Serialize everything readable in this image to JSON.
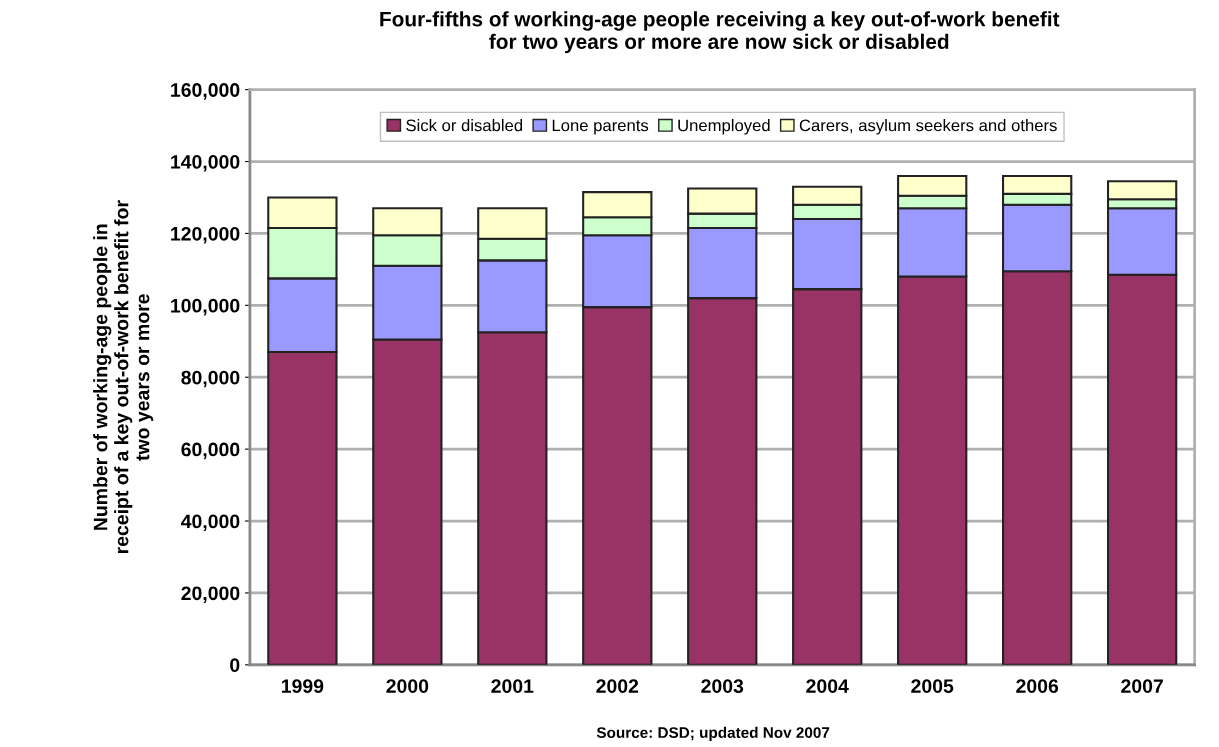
{
  "chart_data": {
    "type": "bar",
    "stacked": true,
    "title": "Four-fifths of working-age people receiving a key out-of-work benefit\nfor two years or more are now sick or disabled",
    "ylabel": "Number of working-age people in\nreceipt of a key out-of-work benefit for\ntwo years or more",
    "categories": [
      "1999",
      "2000",
      "2001",
      "2002",
      "2003",
      "2004",
      "2005",
      "2006",
      "2007"
    ],
    "series": [
      {
        "name": "Sick or disabled",
        "color": "#993366",
        "values": [
          87000,
          90500,
          92500,
          99500,
          102000,
          104500,
          108000,
          109500,
          108500
        ]
      },
      {
        "name": "Lone parents",
        "color": "#9999ff",
        "values": [
          20500,
          20500,
          20000,
          20000,
          19500,
          19500,
          19000,
          18500,
          18500
        ]
      },
      {
        "name": "Unemployed",
        "color": "#ccffcc",
        "values": [
          14000,
          8500,
          6000,
          5000,
          4000,
          4000,
          3500,
          3000,
          2500
        ]
      },
      {
        "name": "Carers, asylum seekers and others",
        "color": "#ffffcc",
        "values": [
          8500,
          7500,
          8500,
          7000,
          7000,
          5000,
          5500,
          5000,
          5000
        ]
      }
    ],
    "ylim": [
      0,
      160000
    ],
    "yticks": [
      {
        "value": 0,
        "label": "0"
      },
      {
        "value": 20000,
        "label": "20,000"
      },
      {
        "value": 40000,
        "label": "40,000"
      },
      {
        "value": 60000,
        "label": "60,000"
      },
      {
        "value": 80000,
        "label": "80,000"
      },
      {
        "value": 100000,
        "label": "100,000"
      },
      {
        "value": 120000,
        "label": "120,000"
      },
      {
        "value": 140000,
        "label": "140,000"
      },
      {
        "value": 160000,
        "label": "160,000"
      }
    ],
    "grid": "y",
    "legend": "top",
    "annotations": [
      "Source: DSD; updated Nov 2007"
    ]
  }
}
